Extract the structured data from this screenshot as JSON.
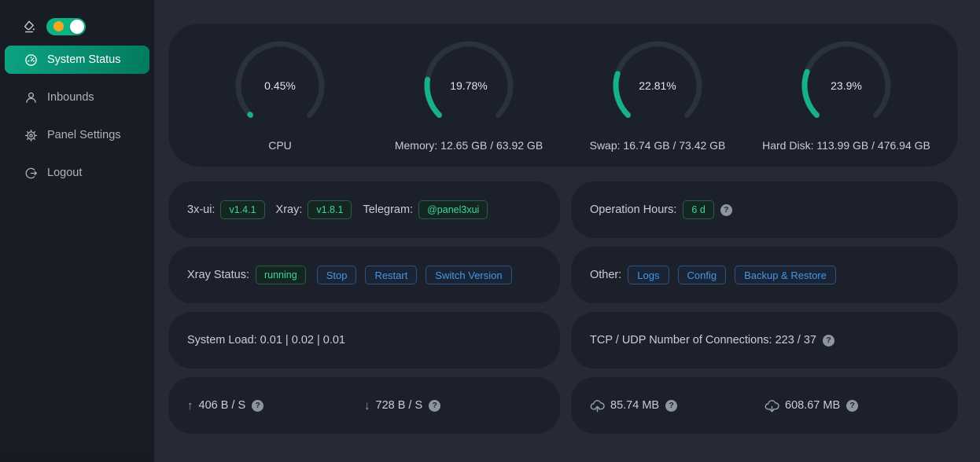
{
  "sidebar": {
    "dark_mode_toggle": {
      "state": "on",
      "sun_color": "#f6a623",
      "track_color": "#0db383"
    },
    "items": [
      {
        "label": "System Status",
        "icon": "dashboard-icon",
        "active": true
      },
      {
        "label": "Inbounds",
        "icon": "user-icon",
        "active": false
      },
      {
        "label": "Panel Settings",
        "icon": "gear-icon",
        "active": false
      },
      {
        "label": "Logout",
        "icon": "logout-icon",
        "active": false
      }
    ]
  },
  "chart_data": {
    "type": "gauge",
    "range": [
      0,
      100
    ],
    "arc_degrees": 270,
    "track_color": "#2c323c",
    "fill_color": "#16b186",
    "gauges": [
      {
        "label": "CPU",
        "percent": 0.45,
        "percent_display": "0.45%"
      },
      {
        "label": "Memory: 12.65 GB / 63.92 GB",
        "percent": 19.78,
        "percent_display": "19.78%"
      },
      {
        "label": "Swap: 16.74 GB / 73.42 GB",
        "percent": 22.81,
        "percent_display": "22.81%"
      },
      {
        "label": "Hard Disk: 113.99 GB / 476.94 GB",
        "percent": 23.9,
        "percent_display": "23.9%"
      }
    ]
  },
  "cards": {
    "version": {
      "app_label": "3x-ui:",
      "app_version": "v1.4.1",
      "xray_label": "Xray:",
      "xray_version": "v1.8.1",
      "telegram_label": "Telegram:",
      "telegram_handle": "@panel3xui"
    },
    "uptime": {
      "label": "Operation Hours:",
      "value": "6 d"
    },
    "xray_status": {
      "label": "Xray Status:",
      "status": "running",
      "stop_button": "Stop",
      "restart_button": "Restart",
      "switch_version_button": "Switch Version"
    },
    "other": {
      "label": "Other:",
      "logs_button": "Logs",
      "config_button": "Config",
      "backup_button": "Backup & Restore"
    },
    "system_load": {
      "text": "System Load: 0.01 | 0.02 | 0.01"
    },
    "connections": {
      "text": "TCP / UDP Number of Connections: 223 / 37"
    },
    "speed": {
      "upload": "406 B / S",
      "download": "728 B / S"
    },
    "traffic": {
      "upload": "85.74 MB",
      "download": "608.67 MB"
    }
  },
  "icons": {
    "arrow_up": "↑",
    "arrow_down": "↓",
    "question": "?"
  },
  "colors": {
    "page_bg": "#252a35",
    "sidebar_bg": "#181c24",
    "card_bg": "#1b202b",
    "accent_green": "#0ca381",
    "gauge_green": "#16b186",
    "tag_green_text": "#3dd6a3",
    "button_blue_text": "#4496e5",
    "sun_orange": "#f6a623"
  }
}
